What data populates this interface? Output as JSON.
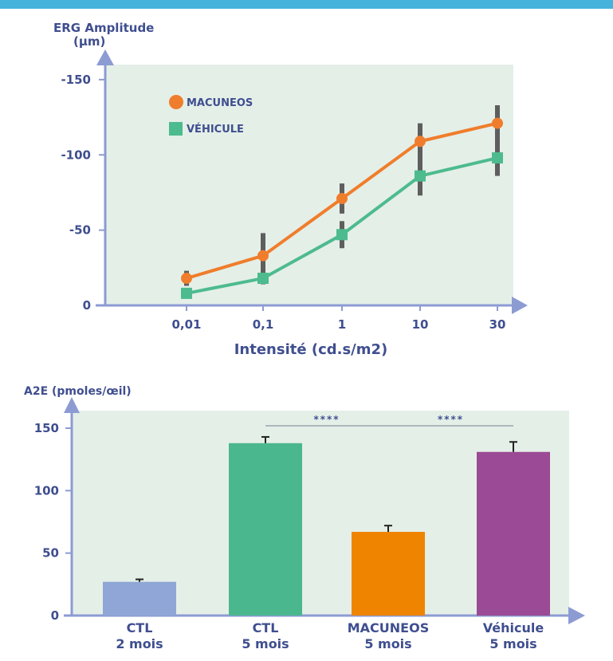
{
  "colors": {
    "axis": "#8d9bd3",
    "text": "#3f4e8f",
    "plot_bg": "#e4efe8",
    "error": "#5e5e5e",
    "banner": "#46b3dd"
  },
  "chart_data": [
    {
      "type": "line",
      "title": "",
      "ylabel_line1": "ERG Amplitude",
      "ylabel_line2": "(μm)",
      "xlabel": "Intensité (cd.s/m2)",
      "categories": [
        "0,01",
        "0,1",
        "1",
        "10",
        "30"
      ],
      "yticks": [
        "-150",
        "-100",
        "-50",
        "0"
      ],
      "ylim": [
        0,
        -160
      ],
      "legend_position": "top-left",
      "series": [
        {
          "name": "MACUNEOS",
          "color": "#f07d2b",
          "marker": "circle",
          "values": [
            -18,
            -33,
            -71,
            -109,
            -121
          ],
          "errors": [
            5,
            15,
            10,
            12,
            12
          ]
        },
        {
          "name": "VÉHICULE",
          "color": "#4dbb8e",
          "marker": "square",
          "values": [
            -8,
            -18,
            -47,
            -86,
            -98
          ],
          "errors": [
            3,
            4,
            9,
            13,
            12
          ]
        }
      ]
    },
    {
      "type": "bar",
      "title": "",
      "ylabel": "A2E (pmoles/œil)",
      "yticks": [
        "150",
        "100",
        "50",
        "0"
      ],
      "ylim": [
        0,
        165
      ],
      "categories": [
        {
          "line1": "CTL",
          "line2": "2 mois"
        },
        {
          "line1": "CTL",
          "line2": "5 mois"
        },
        {
          "line1": "MACUNEOS",
          "line2": "5 mois"
        },
        {
          "line1": "Véhicule",
          "line2": "5 mois"
        }
      ],
      "values": [
        27,
        138,
        67,
        131
      ],
      "errors": [
        2,
        5,
        5,
        8
      ],
      "bar_colors": [
        "#8fa6d6",
        "#4bb78f",
        "#ef8400",
        "#9b4a95"
      ],
      "significance": [
        {
          "from": 1,
          "to": 2,
          "label": "****"
        },
        {
          "from": 2,
          "to": 3,
          "label": "****"
        }
      ]
    }
  ]
}
